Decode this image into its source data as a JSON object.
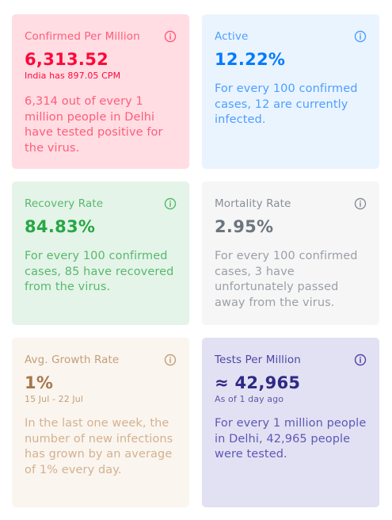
{
  "cards": {
    "confirmed": {
      "title": "Confirmed Per Million",
      "value": "6,313.52",
      "sub": "India has 897.05 CPM",
      "description": "6,314 out of every 1 million people in Delhi have tested positive for the virus.",
      "color": "#ff073a"
    },
    "active": {
      "title": "Active",
      "value": "12.22%",
      "description": "For every 100 confirmed cases, 12 are currently infected.",
      "color": "#007bff"
    },
    "recovery": {
      "title": "Recovery Rate",
      "value": "84.83%",
      "description": "For every 100 confirmed cases, 85 have recovered from the virus.",
      "color": "#28a745"
    },
    "mortality": {
      "title": "Mortality Rate",
      "value": "2.95%",
      "description": "For every 100 confirmed cases, 3 have unfortunately passed away from the virus.",
      "color": "#6c757d"
    },
    "growth": {
      "title": "Avg. Growth Rate",
      "value": "1%",
      "sub": "15 Jul - 22 Jul",
      "description": "In the last one week, the number of new infections has grown by an average of 1% every day.",
      "color": "#b08a5d"
    },
    "tests": {
      "title": "Tests Per Million",
      "value": "≈ 42,965",
      "sub": "As of 1 day ago",
      "description": "For every 1 million people in Delhi, 42,965 people were tested.",
      "color": "#3a3595"
    }
  },
  "icons": {
    "info": "info-icon"
  }
}
